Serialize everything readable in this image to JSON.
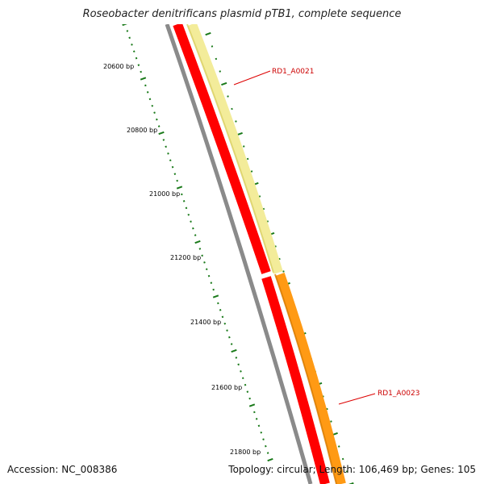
{
  "title": "Roseobacter denitrificans plasmid pTB1, complete sequence",
  "ruler": {
    "labels": [
      "20600 bp",
      "20800 bp",
      "21000 bp",
      "21200 bp",
      "21400 bp",
      "21600 bp",
      "21800 bp"
    ]
  },
  "genes": [
    {
      "name": "RD1_A0021",
      "color": "#f3ec9a",
      "color_edge": "#d9cf63"
    },
    {
      "name": "RD1_A0023",
      "color": "#ff9a14",
      "color_edge": "#d77a00"
    }
  ],
  "colors": {
    "forward_track": "#ff0000",
    "gray_track": "#8a8a8a",
    "ticks": "#1a7a1a",
    "label_line": "#dd0000"
  },
  "footer": {
    "accession": "Accession: NC_008386",
    "stats": "Topology: circular; Length: 106,469 bp; Genes: 105"
  }
}
